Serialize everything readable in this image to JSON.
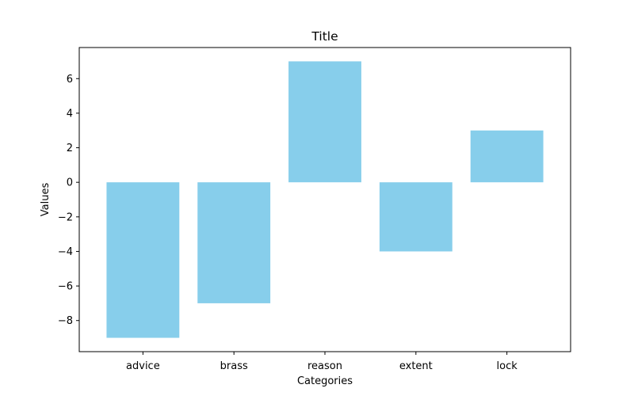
{
  "chart_data": {
    "type": "bar",
    "title": "Title",
    "xlabel": "Categories",
    "ylabel": "Values",
    "categories": [
      "advice",
      "brass",
      "reason",
      "extent",
      "lock"
    ],
    "values": [
      -9,
      -7,
      7,
      -4,
      3
    ],
    "ylim": [
      -9.8,
      7.8
    ],
    "yticks": [
      -8,
      -6,
      -4,
      -2,
      0,
      2,
      4,
      6
    ],
    "bar_color": "#87ceeb",
    "grid": false,
    "legend": "none"
  }
}
